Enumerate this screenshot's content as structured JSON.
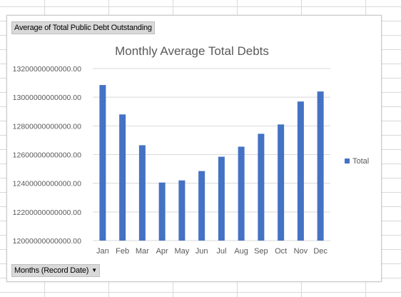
{
  "value_field_button": "Average of Total Public Debt Outstanding",
  "axis_field_button": "Months (Record Date)",
  "colors": {
    "bar": "#4472c4",
    "gridline": "#d9d9d9",
    "axis_text": "#595959"
  },
  "chart_data": {
    "type": "bar",
    "title": "Monthly Average Total Debts",
    "xlabel": "",
    "ylabel": "",
    "categories": [
      "Jan",
      "Feb",
      "Mar",
      "Apr",
      "May",
      "Jun",
      "Jul",
      "Aug",
      "Sep",
      "Oct",
      "Nov",
      "Dec"
    ],
    "series": [
      {
        "name": "Total",
        "values": [
          13085000000000,
          12880000000000,
          12665000000000,
          12405000000000,
          12420000000000,
          12485000000000,
          12585000000000,
          12655000000000,
          12745000000000,
          12810000000000,
          12970000000000,
          13040000000000
        ]
      }
    ],
    "ylim": [
      12000000000000,
      13200000000000
    ],
    "yticks": [
      "13200000000000.00",
      "13000000000000.00",
      "12800000000000.00",
      "12600000000000.00",
      "12400000000000.00",
      "12200000000000.00",
      "12000000000000.00"
    ],
    "grid": true,
    "legend": "right"
  }
}
